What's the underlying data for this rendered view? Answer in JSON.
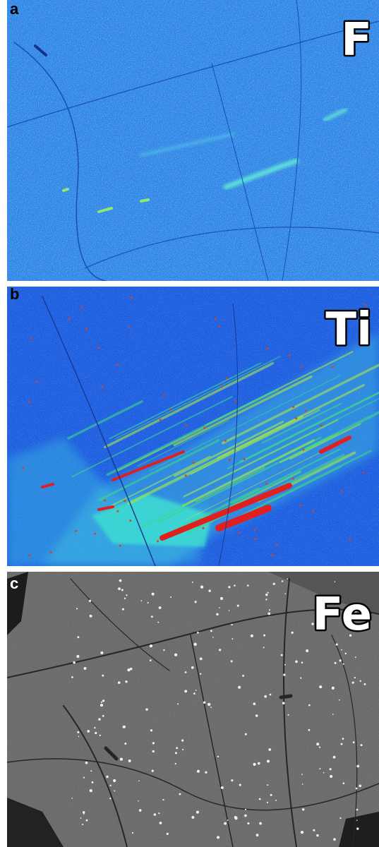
{
  "panels": [
    {
      "label": "a",
      "element": "F"
    },
    {
      "label": "b",
      "element": "Ti"
    },
    {
      "label": "c",
      "element": "Fe"
    }
  ]
}
